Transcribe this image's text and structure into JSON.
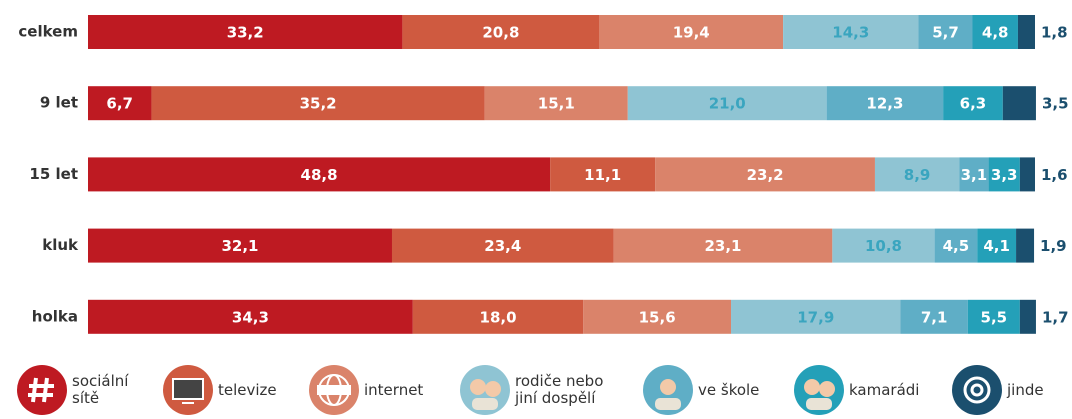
{
  "chart_data": {
    "type": "stacked-bar-horizontal",
    "categories": [
      "celkem",
      "9 let",
      "15 let",
      "kluk",
      "holka"
    ],
    "xlim": [
      0,
      100
    ],
    "series": [
      {
        "name": "sociální sítě",
        "color": "#be1a22",
        "label_color": "#ffffff",
        "values": [
          33.2,
          6.7,
          48.8,
          32.1,
          34.3
        ],
        "value_labels": [
          "33,2",
          "6,7",
          "48,8",
          "32,1",
          "34,3"
        ]
      },
      {
        "name": "televize",
        "color": "#cf5a40",
        "label_color": "#ffffff",
        "values": [
          20.8,
          35.2,
          11.1,
          23.4,
          18.0
        ],
        "value_labels": [
          "20,8",
          "35,2",
          "11,1",
          "23,4",
          "18,0"
        ]
      },
      {
        "name": "internet",
        "color": "#da836a",
        "label_color": "#ffffff",
        "values": [
          19.4,
          15.1,
          23.2,
          23.1,
          15.6
        ],
        "value_labels": [
          "19,4",
          "15,1",
          "23,2",
          "23,1",
          "15,6"
        ]
      },
      {
        "name": "rodiče nebo jiní dospělí",
        "color": "#8fc4d3",
        "label_color": "#3aa5bf",
        "values": [
          14.3,
          21.0,
          8.9,
          10.8,
          17.9
        ],
        "value_labels": [
          "14,3",
          "21,0",
          "8,9",
          "10,8",
          "17,9"
        ]
      },
      {
        "name": "ve škole",
        "color": "#5faec6",
        "label_color": "#ffffff",
        "values": [
          5.7,
          12.3,
          3.1,
          4.5,
          7.1
        ],
        "value_labels": [
          "5,7",
          "12,3",
          "3,1",
          "4,5",
          "7,1"
        ]
      },
      {
        "name": "kamarádi",
        "color": "#24a0b8",
        "label_color": "#ffffff",
        "values": [
          4.8,
          6.3,
          3.3,
          4.1,
          5.5
        ],
        "value_labels": [
          "4,8",
          "6,3",
          "3,3",
          "4,1",
          "5,5"
        ]
      },
      {
        "name": "jinde",
        "color": "#1b4f6e",
        "label_color": "#1b4f6e",
        "values": [
          1.8,
          3.5,
          1.6,
          1.9,
          1.7
        ],
        "value_labels": [
          "1,8",
          "3,5",
          "1,6",
          "1,9",
          "1,7"
        ]
      }
    ]
  }
}
